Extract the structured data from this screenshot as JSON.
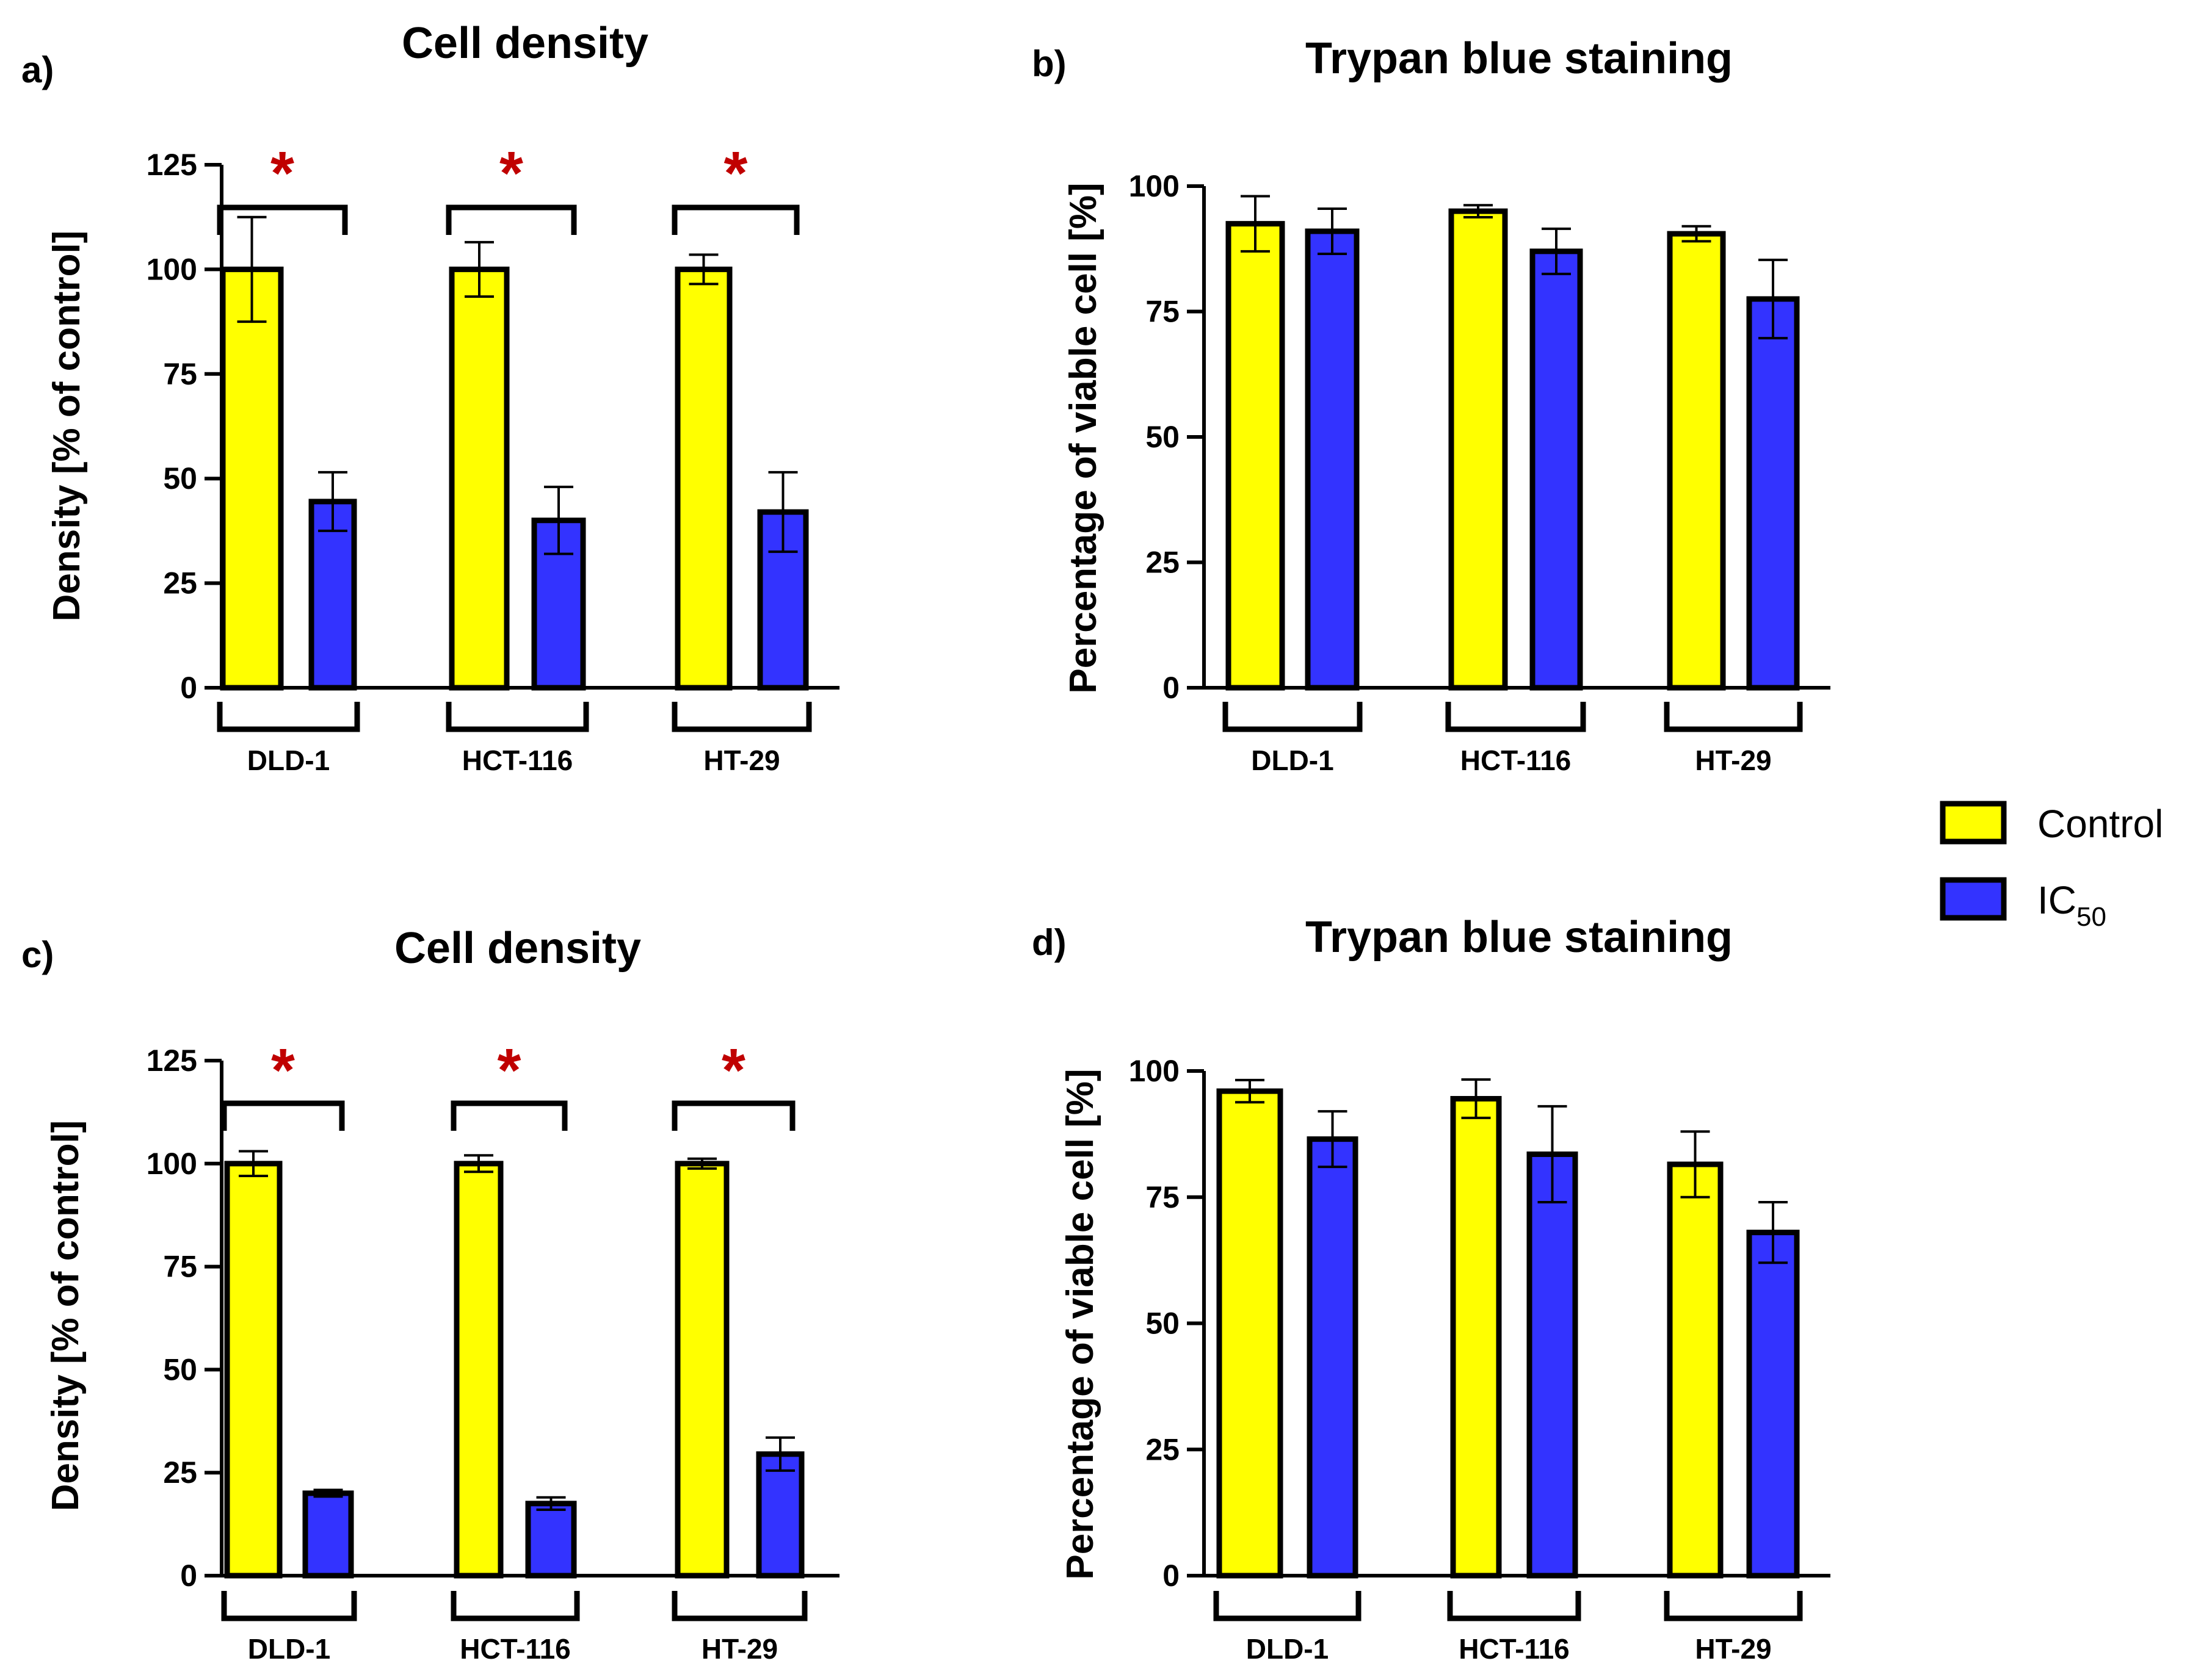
{
  "legend": [
    {
      "name": "Control",
      "color": "#ffff00"
    },
    {
      "name": "IC",
      "sub": "50",
      "color": "#3333ff"
    }
  ],
  "chart_data": [
    {
      "panel": "a)",
      "type": "bar",
      "title": "Cell density",
      "ylabel": "Density [% of control]",
      "ylim": [
        0,
        125
      ],
      "yticks": [
        "0",
        "25",
        "50",
        "75",
        "100",
        "125"
      ],
      "categories": [
        "DLD-1",
        "HCT-116",
        "HT-29"
      ],
      "series": [
        {
          "name": "Control",
          "values": [
            100,
            100,
            100
          ],
          "errors": [
            12.5,
            6.5,
            3.5
          ]
        },
        {
          "name": "IC50",
          "values": [
            44.5,
            40,
            42
          ],
          "errors": [
            7,
            8,
            9.5
          ]
        }
      ],
      "significance": [
        "*",
        "*",
        "*"
      ]
    },
    {
      "panel": "b)",
      "type": "bar",
      "title": "Trypan blue staining",
      "ylabel": "Percentage of viable cell [%]",
      "ylim": [
        0,
        100
      ],
      "yticks": [
        "0",
        "25",
        "50",
        "75",
        "100"
      ],
      "categories": [
        "DLD-1",
        "HCT-116",
        "HT-29"
      ],
      "series": [
        {
          "name": "Control",
          "values": [
            92.5,
            95,
            90.5
          ],
          "errors": [
            5.5,
            1.2,
            1.5
          ]
        },
        {
          "name": "IC50",
          "values": [
            91,
            87,
            77.5
          ],
          "errors": [
            4.5,
            4.5,
            7.8
          ]
        }
      ],
      "significance": []
    },
    {
      "panel": "c)",
      "type": "bar",
      "title": "Cell density",
      "ylabel": "Density [% of control]",
      "ylim": [
        0,
        125
      ],
      "yticks": [
        "0",
        "25",
        "50",
        "75",
        "100",
        "125"
      ],
      "categories": [
        "DLD-1",
        "HCT-116",
        "HT-29"
      ],
      "series": [
        {
          "name": "Control",
          "values": [
            100,
            100,
            100
          ],
          "errors": [
            3,
            2,
            1.2
          ]
        },
        {
          "name": "IC50",
          "values": [
            20,
            17.5,
            29.5
          ],
          "errors": [
            0.8,
            1.5,
            4
          ]
        }
      ],
      "significance": [
        "*",
        "*",
        "*"
      ]
    },
    {
      "panel": "d)",
      "type": "bar",
      "title": "Trypan blue staining",
      "ylabel": "Percentage of viable cell [%]",
      "ylim": [
        0,
        100
      ],
      "yticks": [
        "0",
        "25",
        "50",
        "75",
        "100"
      ],
      "categories": [
        "DLD-1",
        "HCT-116",
        "HT-29"
      ],
      "series": [
        {
          "name": "Control",
          "values": [
            96,
            94.5,
            81.5
          ],
          "errors": [
            2.2,
            3.8,
            6.5
          ]
        },
        {
          "name": "IC50",
          "values": [
            86.5,
            83.5,
            68
          ],
          "errors": [
            5.5,
            9.5,
            6
          ]
        }
      ],
      "significance": []
    }
  ]
}
